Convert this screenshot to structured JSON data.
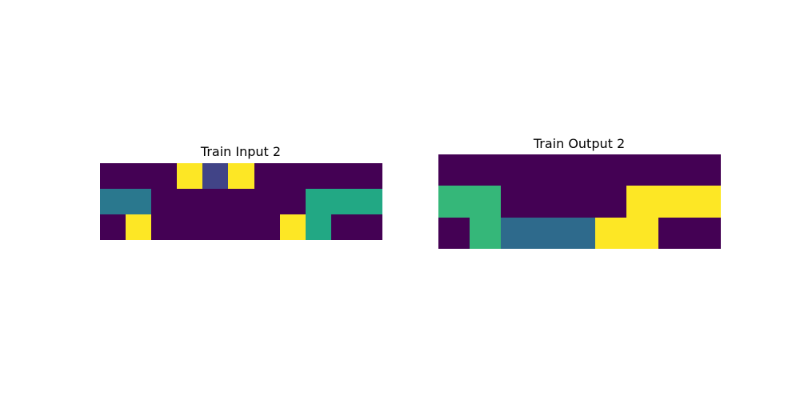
{
  "palette": {
    "0": "#440154",
    "1": "#414487",
    "2": "#2a788e",
    "3": "#22a884",
    "4": "#35b779",
    "5": "#fde725",
    "6": "#2e6a8c"
  },
  "panels": {
    "input": {
      "title": "Train Input 2",
      "rows": 3,
      "cols": 11,
      "grid": [
        [
          0,
          0,
          0,
          5,
          1,
          5,
          0,
          0,
          0,
          0,
          0
        ],
        [
          2,
          2,
          0,
          0,
          0,
          0,
          0,
          0,
          3,
          3,
          3
        ],
        [
          0,
          5,
          0,
          0,
          0,
          0,
          0,
          5,
          3,
          0,
          0
        ]
      ]
    },
    "output": {
      "title": "Train Output 2",
      "rows": 3,
      "cols": 9,
      "grid": [
        [
          0,
          0,
          0,
          0,
          0,
          0,
          0,
          0,
          0
        ],
        [
          4,
          4,
          0,
          0,
          0,
          0,
          5,
          5,
          5
        ],
        [
          0,
          4,
          6,
          6,
          6,
          5,
          5,
          0,
          0
        ]
      ]
    }
  }
}
